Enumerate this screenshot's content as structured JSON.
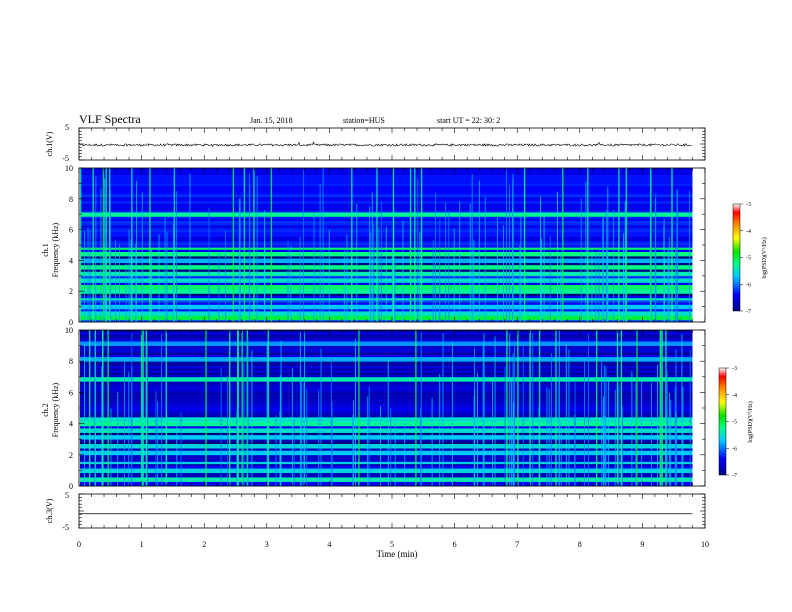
{
  "header": {
    "title": "VLF Spectra",
    "date": "Jan. 15, 2018",
    "station": "station=HUS",
    "start": "start  UT  =   22: 30: 2"
  },
  "chart_data": [
    {
      "type": "line",
      "panel": "ch1-voltage",
      "ylabel": "ch.1(V)",
      "ylim": [
        -5,
        5
      ],
      "yticks": [
        "5",
        "-5"
      ],
      "xlim": [
        0,
        10
      ],
      "series": [
        {
          "x": [
            0,
            9.8
          ],
          "y": [
            -0.3,
            -0.3
          ]
        }
      ],
      "noise_amplitude": 0.35
    },
    {
      "type": "heatmap",
      "panel": "ch1-spectrogram",
      "ylabel": "ch.1",
      "ylabel2": "Frequency  (kHz)",
      "ylim": [
        0,
        10
      ],
      "yticks": [
        "0",
        "2",
        "4",
        "6",
        "8",
        "10"
      ],
      "xlim": [
        0,
        9.8
      ],
      "background_level": -6.3,
      "bands": [
        {
          "f": 0.3,
          "level": -5.0
        },
        {
          "f": 0.6,
          "level": -5.5
        },
        {
          "f": 1.0,
          "level": -5.7
        },
        {
          "f": 1.5,
          "level": -5.4
        },
        {
          "f": 2.0,
          "level": -5.3
        },
        {
          "f": 2.3,
          "level": -5.1
        },
        {
          "f": 2.7,
          "level": -5.5
        },
        {
          "f": 3.1,
          "level": -5.4
        },
        {
          "f": 3.6,
          "level": -5.2
        },
        {
          "f": 4.0,
          "level": -5.8
        },
        {
          "f": 4.4,
          "level": -5.2
        },
        {
          "f": 4.8,
          "level": -5.1
        },
        {
          "f": 7.0,
          "level": -5.3
        }
      ],
      "dark_bands": [
        {
          "f": 1.8
        },
        {
          "f": 3.3
        },
        {
          "f": 3.8
        },
        {
          "f": 4.2
        }
      ],
      "colorbar": {
        "label": "log(PSD)(V²/Hz)",
        "ticks": [
          "-3",
          "-4",
          "-5",
          "-6",
          "-7"
        ],
        "range": [
          -7,
          -3
        ]
      }
    },
    {
      "type": "heatmap",
      "panel": "ch2-spectrogram",
      "ylabel": "ch.2",
      "ylabel2": "Frequency  (kHz)",
      "ylim": [
        0,
        10
      ],
      "yticks": [
        "0",
        "2",
        "4",
        "6",
        "8",
        "10"
      ],
      "xlim": [
        0,
        9.8
      ],
      "background_level": -6.6,
      "bands": [
        {
          "f": 0.4,
          "level": -5.4
        },
        {
          "f": 1.0,
          "level": -5.6
        },
        {
          "f": 1.5,
          "level": -5.6
        },
        {
          "f": 2.1,
          "level": -5.7
        },
        {
          "f": 2.6,
          "level": -5.6
        },
        {
          "f": 3.1,
          "level": -5.7
        },
        {
          "f": 3.6,
          "level": -5.5
        },
        {
          "f": 4.0,
          "level": -5.3
        },
        {
          "f": 4.3,
          "level": -5.5
        },
        {
          "f": 6.9,
          "level": -5.4
        },
        {
          "f": 8.1,
          "level": -5.8
        },
        {
          "f": 9.1,
          "level": -5.9
        }
      ],
      "dark_bands": [
        {
          "f": 3.3
        },
        {
          "f": 2.8
        }
      ],
      "colorbar": {
        "label": "log(PSD)(V²/Hz)",
        "ticks": [
          "-3",
          "-4",
          "-5",
          "-6",
          "-7"
        ],
        "range": [
          -7,
          -3
        ]
      }
    },
    {
      "type": "line",
      "panel": "ch3-voltage",
      "ylabel": "ch.3(V)",
      "ylim": [
        -5,
        5
      ],
      "yticks": [
        "5",
        "-5"
      ],
      "xlim": [
        0,
        10
      ],
      "xlabel": "Time  (min)",
      "xticks": [
        "0",
        "1",
        "2",
        "3",
        "4",
        "5",
        "6",
        "7",
        "8",
        "9",
        "10"
      ],
      "series": [
        {
          "x": [
            0,
            9.8
          ],
          "y": [
            -0.8,
            -0.8
          ]
        }
      ],
      "noise_amplitude": 0
    }
  ]
}
